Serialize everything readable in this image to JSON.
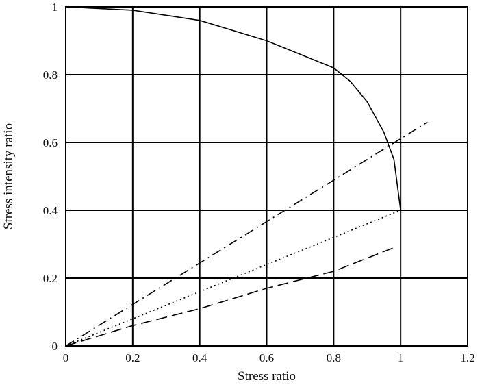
{
  "chart_data": {
    "type": "line",
    "xlabel": "Stress ratio",
    "ylabel": "Stress intensity ratio",
    "xlim": [
      0,
      1.2
    ],
    "ylim": [
      0,
      1
    ],
    "grid": true,
    "x_ticks": [
      "0",
      "0.2",
      "0.4",
      "0.6",
      "0.8",
      "1",
      "1.2"
    ],
    "y_ticks": [
      "0",
      "0.2",
      "0.4",
      "0.6",
      "0.8",
      "1"
    ],
    "series": [
      {
        "style": "solid",
        "x": [
          0,
          0.2,
          0.4,
          0.5,
          0.6,
          0.7,
          0.8,
          0.85,
          0.9,
          0.95,
          0.98,
          1.0
        ],
        "y": [
          1.0,
          0.99,
          0.96,
          0.93,
          0.9,
          0.86,
          0.82,
          0.78,
          0.72,
          0.63,
          0.55,
          0.4
        ]
      },
      {
        "style": "dash-dot",
        "x": [
          0,
          1.08
        ],
        "y": [
          0,
          0.66
        ]
      },
      {
        "style": "dotted",
        "x": [
          0,
          1.0
        ],
        "y": [
          0,
          0.4
        ]
      },
      {
        "style": "dashed",
        "x": [
          0,
          0.2,
          0.4,
          0.6,
          0.8,
          0.98
        ],
        "y": [
          0,
          0.06,
          0.11,
          0.17,
          0.22,
          0.29
        ]
      }
    ]
  }
}
